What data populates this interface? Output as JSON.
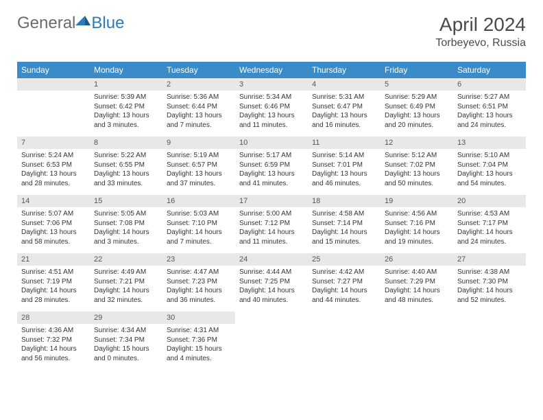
{
  "logo": {
    "t1": "General",
    "t2": "Blue"
  },
  "title": "April 2024",
  "location": "Torbeyevo, Russia",
  "weekdays": [
    "Sunday",
    "Monday",
    "Tuesday",
    "Wednesday",
    "Thursday",
    "Friday",
    "Saturday"
  ],
  "colors": {
    "header_bg": "#3b8bc9",
    "daynum_bg": "#e8e8e8",
    "logo_gray": "#6b6b6b",
    "logo_blue": "#2b7bb9"
  },
  "weeks": [
    [
      null,
      {
        "n": "1",
        "sr": "Sunrise: 5:39 AM",
        "ss": "Sunset: 6:42 PM",
        "d1": "Daylight: 13 hours",
        "d2": "and 3 minutes."
      },
      {
        "n": "2",
        "sr": "Sunrise: 5:36 AM",
        "ss": "Sunset: 6:44 PM",
        "d1": "Daylight: 13 hours",
        "d2": "and 7 minutes."
      },
      {
        "n": "3",
        "sr": "Sunrise: 5:34 AM",
        "ss": "Sunset: 6:46 PM",
        "d1": "Daylight: 13 hours",
        "d2": "and 11 minutes."
      },
      {
        "n": "4",
        "sr": "Sunrise: 5:31 AM",
        "ss": "Sunset: 6:47 PM",
        "d1": "Daylight: 13 hours",
        "d2": "and 16 minutes."
      },
      {
        "n": "5",
        "sr": "Sunrise: 5:29 AM",
        "ss": "Sunset: 6:49 PM",
        "d1": "Daylight: 13 hours",
        "d2": "and 20 minutes."
      },
      {
        "n": "6",
        "sr": "Sunrise: 5:27 AM",
        "ss": "Sunset: 6:51 PM",
        "d1": "Daylight: 13 hours",
        "d2": "and 24 minutes."
      }
    ],
    [
      {
        "n": "7",
        "sr": "Sunrise: 5:24 AM",
        "ss": "Sunset: 6:53 PM",
        "d1": "Daylight: 13 hours",
        "d2": "and 28 minutes."
      },
      {
        "n": "8",
        "sr": "Sunrise: 5:22 AM",
        "ss": "Sunset: 6:55 PM",
        "d1": "Daylight: 13 hours",
        "d2": "and 33 minutes."
      },
      {
        "n": "9",
        "sr": "Sunrise: 5:19 AM",
        "ss": "Sunset: 6:57 PM",
        "d1": "Daylight: 13 hours",
        "d2": "and 37 minutes."
      },
      {
        "n": "10",
        "sr": "Sunrise: 5:17 AM",
        "ss": "Sunset: 6:59 PM",
        "d1": "Daylight: 13 hours",
        "d2": "and 41 minutes."
      },
      {
        "n": "11",
        "sr": "Sunrise: 5:14 AM",
        "ss": "Sunset: 7:01 PM",
        "d1": "Daylight: 13 hours",
        "d2": "and 46 minutes."
      },
      {
        "n": "12",
        "sr": "Sunrise: 5:12 AM",
        "ss": "Sunset: 7:02 PM",
        "d1": "Daylight: 13 hours",
        "d2": "and 50 minutes."
      },
      {
        "n": "13",
        "sr": "Sunrise: 5:10 AM",
        "ss": "Sunset: 7:04 PM",
        "d1": "Daylight: 13 hours",
        "d2": "and 54 minutes."
      }
    ],
    [
      {
        "n": "14",
        "sr": "Sunrise: 5:07 AM",
        "ss": "Sunset: 7:06 PM",
        "d1": "Daylight: 13 hours",
        "d2": "and 58 minutes."
      },
      {
        "n": "15",
        "sr": "Sunrise: 5:05 AM",
        "ss": "Sunset: 7:08 PM",
        "d1": "Daylight: 14 hours",
        "d2": "and 3 minutes."
      },
      {
        "n": "16",
        "sr": "Sunrise: 5:03 AM",
        "ss": "Sunset: 7:10 PM",
        "d1": "Daylight: 14 hours",
        "d2": "and 7 minutes."
      },
      {
        "n": "17",
        "sr": "Sunrise: 5:00 AM",
        "ss": "Sunset: 7:12 PM",
        "d1": "Daylight: 14 hours",
        "d2": "and 11 minutes."
      },
      {
        "n": "18",
        "sr": "Sunrise: 4:58 AM",
        "ss": "Sunset: 7:14 PM",
        "d1": "Daylight: 14 hours",
        "d2": "and 15 minutes."
      },
      {
        "n": "19",
        "sr": "Sunrise: 4:56 AM",
        "ss": "Sunset: 7:16 PM",
        "d1": "Daylight: 14 hours",
        "d2": "and 19 minutes."
      },
      {
        "n": "20",
        "sr": "Sunrise: 4:53 AM",
        "ss": "Sunset: 7:17 PM",
        "d1": "Daylight: 14 hours",
        "d2": "and 24 minutes."
      }
    ],
    [
      {
        "n": "21",
        "sr": "Sunrise: 4:51 AM",
        "ss": "Sunset: 7:19 PM",
        "d1": "Daylight: 14 hours",
        "d2": "and 28 minutes."
      },
      {
        "n": "22",
        "sr": "Sunrise: 4:49 AM",
        "ss": "Sunset: 7:21 PM",
        "d1": "Daylight: 14 hours",
        "d2": "and 32 minutes."
      },
      {
        "n": "23",
        "sr": "Sunrise: 4:47 AM",
        "ss": "Sunset: 7:23 PM",
        "d1": "Daylight: 14 hours",
        "d2": "and 36 minutes."
      },
      {
        "n": "24",
        "sr": "Sunrise: 4:44 AM",
        "ss": "Sunset: 7:25 PM",
        "d1": "Daylight: 14 hours",
        "d2": "and 40 minutes."
      },
      {
        "n": "25",
        "sr": "Sunrise: 4:42 AM",
        "ss": "Sunset: 7:27 PM",
        "d1": "Daylight: 14 hours",
        "d2": "and 44 minutes."
      },
      {
        "n": "26",
        "sr": "Sunrise: 4:40 AM",
        "ss": "Sunset: 7:29 PM",
        "d1": "Daylight: 14 hours",
        "d2": "and 48 minutes."
      },
      {
        "n": "27",
        "sr": "Sunrise: 4:38 AM",
        "ss": "Sunset: 7:30 PM",
        "d1": "Daylight: 14 hours",
        "d2": "and 52 minutes."
      }
    ],
    [
      {
        "n": "28",
        "sr": "Sunrise: 4:36 AM",
        "ss": "Sunset: 7:32 PM",
        "d1": "Daylight: 14 hours",
        "d2": "and 56 minutes."
      },
      {
        "n": "29",
        "sr": "Sunrise: 4:34 AM",
        "ss": "Sunset: 7:34 PM",
        "d1": "Daylight: 15 hours",
        "d2": "and 0 minutes."
      },
      {
        "n": "30",
        "sr": "Sunrise: 4:31 AM",
        "ss": "Sunset: 7:36 PM",
        "d1": "Daylight: 15 hours",
        "d2": "and 4 minutes."
      },
      null,
      null,
      null,
      null
    ]
  ]
}
